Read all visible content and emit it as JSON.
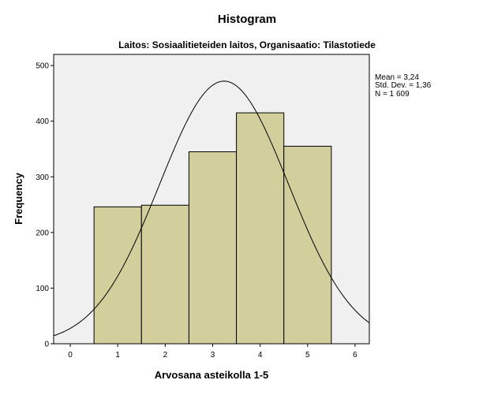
{
  "chart_data": {
    "type": "bar",
    "title": "Histogram",
    "subtitle": "Laitos: Sosiaalitieteiden laitos, Organisaatio: Tilastotiede",
    "xlabel": "Arvosana asteikolla 1-5",
    "ylabel": "Frequency",
    "categories": [
      1,
      2,
      3,
      4,
      5
    ],
    "values": [
      246,
      249,
      345,
      415,
      355
    ],
    "bin_width": 1,
    "xlim": [
      -0.35,
      6.3
    ],
    "ylim": [
      0,
      520
    ],
    "xticks": [
      "0",
      "1",
      "2",
      "3",
      "4",
      "5",
      "6"
    ],
    "yticks": [
      "0",
      "100",
      "200",
      "300",
      "400",
      "500"
    ],
    "normal_curve": {
      "mean": 3.24,
      "sd": 1.36,
      "n": 1609
    },
    "stats": {
      "mean": "Mean = 3,24",
      "sd": "Std. Dev. = 1,36",
      "n": "N = 1 609"
    },
    "legend_position": "right",
    "colors": {
      "bar_fill": "#d3cf9c",
      "plot_bg": "#f0f0f0",
      "line": "#000000"
    }
  }
}
